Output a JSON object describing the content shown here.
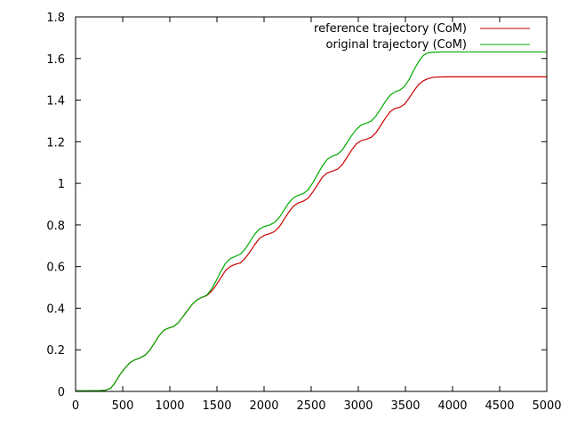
{
  "chart_data": {
    "type": "line",
    "title": "",
    "xlabel": "",
    "ylabel": "",
    "xlim": [
      0,
      5000
    ],
    "ylim": [
      0,
      1.8
    ],
    "x_ticks": [
      "0",
      "500",
      "1000",
      "1500",
      "2000",
      "2500",
      "3000",
      "3500",
      "4000",
      "4500",
      "5000"
    ],
    "y_ticks": [
      "0",
      "0.2",
      "0.4",
      "0.6",
      "0.8",
      "1",
      "1.2",
      "1.4",
      "1.6",
      "1.8"
    ],
    "grid": false,
    "legend_position": "top-right",
    "series": [
      {
        "name": "reference trajectory (CoM)",
        "color": "#cc0000",
        "points": [
          [
            0,
            0.003
          ],
          [
            250,
            0.004
          ],
          [
            320,
            0.006
          ],
          [
            370,
            0.015
          ],
          [
            400,
            0.03
          ],
          [
            430,
            0.05
          ],
          [
            470,
            0.08
          ],
          [
            520,
            0.11
          ],
          [
            570,
            0.135
          ],
          [
            620,
            0.15
          ],
          [
            680,
            0.16
          ],
          [
            740,
            0.175
          ],
          [
            790,
            0.2
          ],
          [
            840,
            0.235
          ],
          [
            890,
            0.27
          ],
          [
            940,
            0.295
          ],
          [
            990,
            0.305
          ],
          [
            1040,
            0.312
          ],
          [
            1090,
            0.33
          ],
          [
            1140,
            0.36
          ],
          [
            1190,
            0.39
          ],
          [
            1240,
            0.42
          ],
          [
            1290,
            0.44
          ],
          [
            1340,
            0.452
          ],
          [
            1390,
            0.46
          ],
          [
            1440,
            0.48
          ],
          [
            1490,
            0.51
          ],
          [
            1540,
            0.545
          ],
          [
            1590,
            0.58
          ],
          [
            1640,
            0.6
          ],
          [
            1690,
            0.61
          ],
          [
            1750,
            0.618
          ],
          [
            1800,
            0.64
          ],
          [
            1850,
            0.67
          ],
          [
            1900,
            0.705
          ],
          [
            1950,
            0.735
          ],
          [
            2000,
            0.75
          ],
          [
            2060,
            0.758
          ],
          [
            2110,
            0.768
          ],
          [
            2160,
            0.79
          ],
          [
            2210,
            0.825
          ],
          [
            2260,
            0.86
          ],
          [
            2310,
            0.89
          ],
          [
            2360,
            0.905
          ],
          [
            2420,
            0.915
          ],
          [
            2470,
            0.93
          ],
          [
            2520,
            0.96
          ],
          [
            2570,
            0.995
          ],
          [
            2620,
            1.03
          ],
          [
            2670,
            1.05
          ],
          [
            2720,
            1.058
          ],
          [
            2780,
            1.068
          ],
          [
            2830,
            1.09
          ],
          [
            2880,
            1.125
          ],
          [
            2930,
            1.16
          ],
          [
            2980,
            1.19
          ],
          [
            3030,
            1.205
          ],
          [
            3090,
            1.213
          ],
          [
            3140,
            1.222
          ],
          [
            3190,
            1.245
          ],
          [
            3240,
            1.28
          ],
          [
            3290,
            1.315
          ],
          [
            3340,
            1.345
          ],
          [
            3390,
            1.36
          ],
          [
            3440,
            1.366
          ],
          [
            3490,
            1.38
          ],
          [
            3540,
            1.41
          ],
          [
            3590,
            1.445
          ],
          [
            3640,
            1.475
          ],
          [
            3690,
            1.493
          ],
          [
            3740,
            1.503
          ],
          [
            3800,
            1.51
          ],
          [
            3900,
            1.512
          ],
          [
            5000,
            1.512
          ]
        ]
      },
      {
        "name": "original trajectory (CoM)",
        "color": "#00aa00",
        "points": [
          [
            0,
            0.003
          ],
          [
            250,
            0.004
          ],
          [
            320,
            0.006
          ],
          [
            370,
            0.015
          ],
          [
            400,
            0.03
          ],
          [
            430,
            0.05
          ],
          [
            470,
            0.08
          ],
          [
            520,
            0.11
          ],
          [
            570,
            0.135
          ],
          [
            620,
            0.15
          ],
          [
            680,
            0.16
          ],
          [
            740,
            0.175
          ],
          [
            790,
            0.2
          ],
          [
            840,
            0.235
          ],
          [
            890,
            0.27
          ],
          [
            940,
            0.295
          ],
          [
            990,
            0.305
          ],
          [
            1040,
            0.312
          ],
          [
            1090,
            0.33
          ],
          [
            1140,
            0.36
          ],
          [
            1190,
            0.39
          ],
          [
            1240,
            0.42
          ],
          [
            1290,
            0.44
          ],
          [
            1340,
            0.452
          ],
          [
            1390,
            0.462
          ],
          [
            1440,
            0.49
          ],
          [
            1490,
            0.53
          ],
          [
            1540,
            0.575
          ],
          [
            1590,
            0.615
          ],
          [
            1640,
            0.638
          ],
          [
            1690,
            0.648
          ],
          [
            1750,
            0.66
          ],
          [
            1800,
            0.685
          ],
          [
            1850,
            0.72
          ],
          [
            1900,
            0.755
          ],
          [
            1950,
            0.78
          ],
          [
            2000,
            0.792
          ],
          [
            2060,
            0.8
          ],
          [
            2110,
            0.812
          ],
          [
            2160,
            0.835
          ],
          [
            2210,
            0.87
          ],
          [
            2260,
            0.905
          ],
          [
            2310,
            0.93
          ],
          [
            2360,
            0.942
          ],
          [
            2420,
            0.952
          ],
          [
            2470,
            0.97
          ],
          [
            2520,
            1.005
          ],
          [
            2570,
            1.045
          ],
          [
            2620,
            1.085
          ],
          [
            2670,
            1.115
          ],
          [
            2720,
            1.13
          ],
          [
            2780,
            1.14
          ],
          [
            2830,
            1.16
          ],
          [
            2880,
            1.195
          ],
          [
            2930,
            1.23
          ],
          [
            2980,
            1.26
          ],
          [
            3030,
            1.28
          ],
          [
            3090,
            1.29
          ],
          [
            3140,
            1.3
          ],
          [
            3190,
            1.325
          ],
          [
            3240,
            1.36
          ],
          [
            3290,
            1.395
          ],
          [
            3340,
            1.425
          ],
          [
            3390,
            1.44
          ],
          [
            3440,
            1.448
          ],
          [
            3490,
            1.465
          ],
          [
            3540,
            1.5
          ],
          [
            3590,
            1.545
          ],
          [
            3640,
            1.585
          ],
          [
            3690,
            1.615
          ],
          [
            3740,
            1.628
          ],
          [
            3800,
            1.63
          ],
          [
            3900,
            1.632
          ],
          [
            5000,
            1.632
          ]
        ]
      }
    ]
  }
}
